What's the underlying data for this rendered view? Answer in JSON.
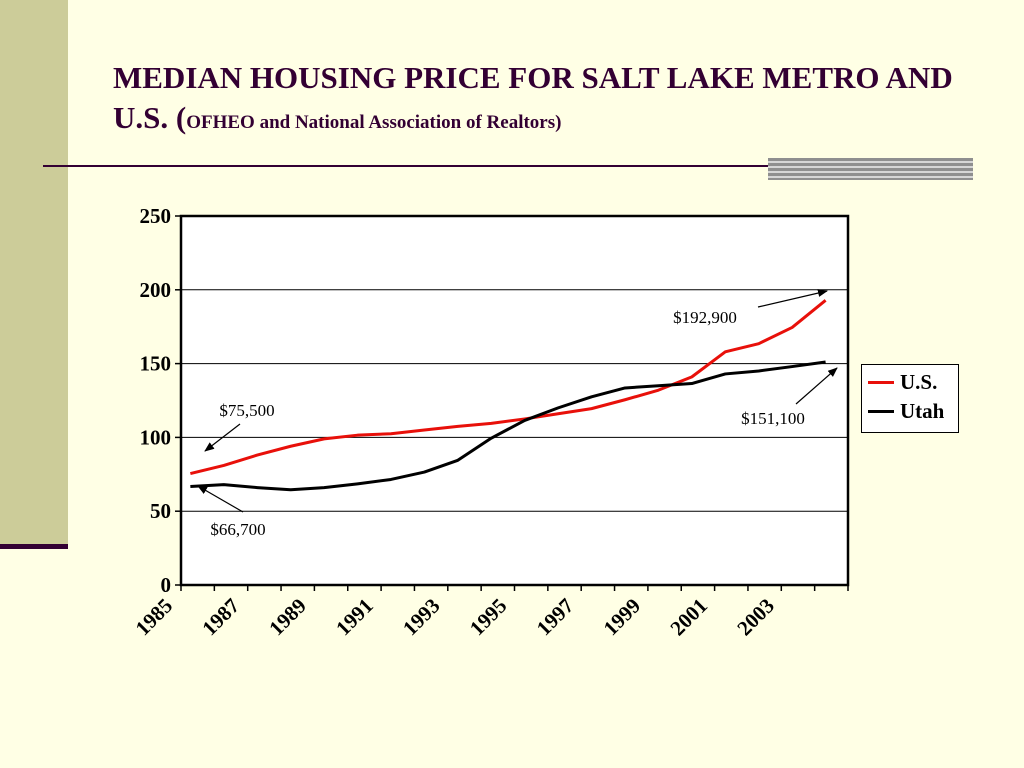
{
  "slide": {
    "title_main": "MEDIAN HOUSING PRICE FOR SALT LAKE METRO AND U.S. (",
    "title_source": "OFHEO and National Association of Realtors)"
  },
  "colors": {
    "us": "#E8100A",
    "utah": "#000000",
    "accent": "#330033",
    "sidebar": "#CCCC99",
    "background": "#FFFFE5"
  },
  "chart_data": {
    "type": "line",
    "title": "",
    "xlabel": "",
    "ylabel": "",
    "ylim": [
      0,
      250
    ],
    "yticks": [
      0,
      50,
      100,
      150,
      200,
      250
    ],
    "xticks": [
      "1985",
      "1987",
      "1989",
      "1991",
      "1993",
      "1995",
      "1997",
      "1999",
      "2001",
      "2003"
    ],
    "x": [
      1985,
      1986,
      1987,
      1988,
      1989,
      1990,
      1991,
      1992,
      1993,
      1994,
      1995,
      1996,
      1997,
      1998,
      1999,
      2000,
      2001,
      2002,
      2003,
      2004
    ],
    "grid": "horizontal",
    "legend_position": "right",
    "series": [
      {
        "name": "U.S.",
        "color": "#E8100A",
        "values": [
          75.5,
          81,
          88,
          94,
          99,
          101.5,
          102.5,
          105,
          107.5,
          109.5,
          112.5,
          116,
          119.5,
          125.5,
          132,
          141,
          158,
          163.5,
          174.5,
          192.9
        ]
      },
      {
        "name": "Utah",
        "color": "#000000",
        "values": [
          66.7,
          68,
          66,
          64.5,
          66,
          68.5,
          71.5,
          76.5,
          84.5,
          99.5,
          111.5,
          120,
          127.5,
          133.5,
          135,
          136.5,
          143,
          145,
          148,
          151.1
        ]
      }
    ],
    "annotations": [
      {
        "text": "$75,500",
        "series": "U.S.",
        "x": 1985
      },
      {
        "text": "$66,700",
        "series": "Utah",
        "x": 1985
      },
      {
        "text": "$192,900",
        "series": "U.S.",
        "x": 2004
      },
      {
        "text": "$151,100",
        "series": "Utah",
        "x": 2004
      }
    ]
  }
}
